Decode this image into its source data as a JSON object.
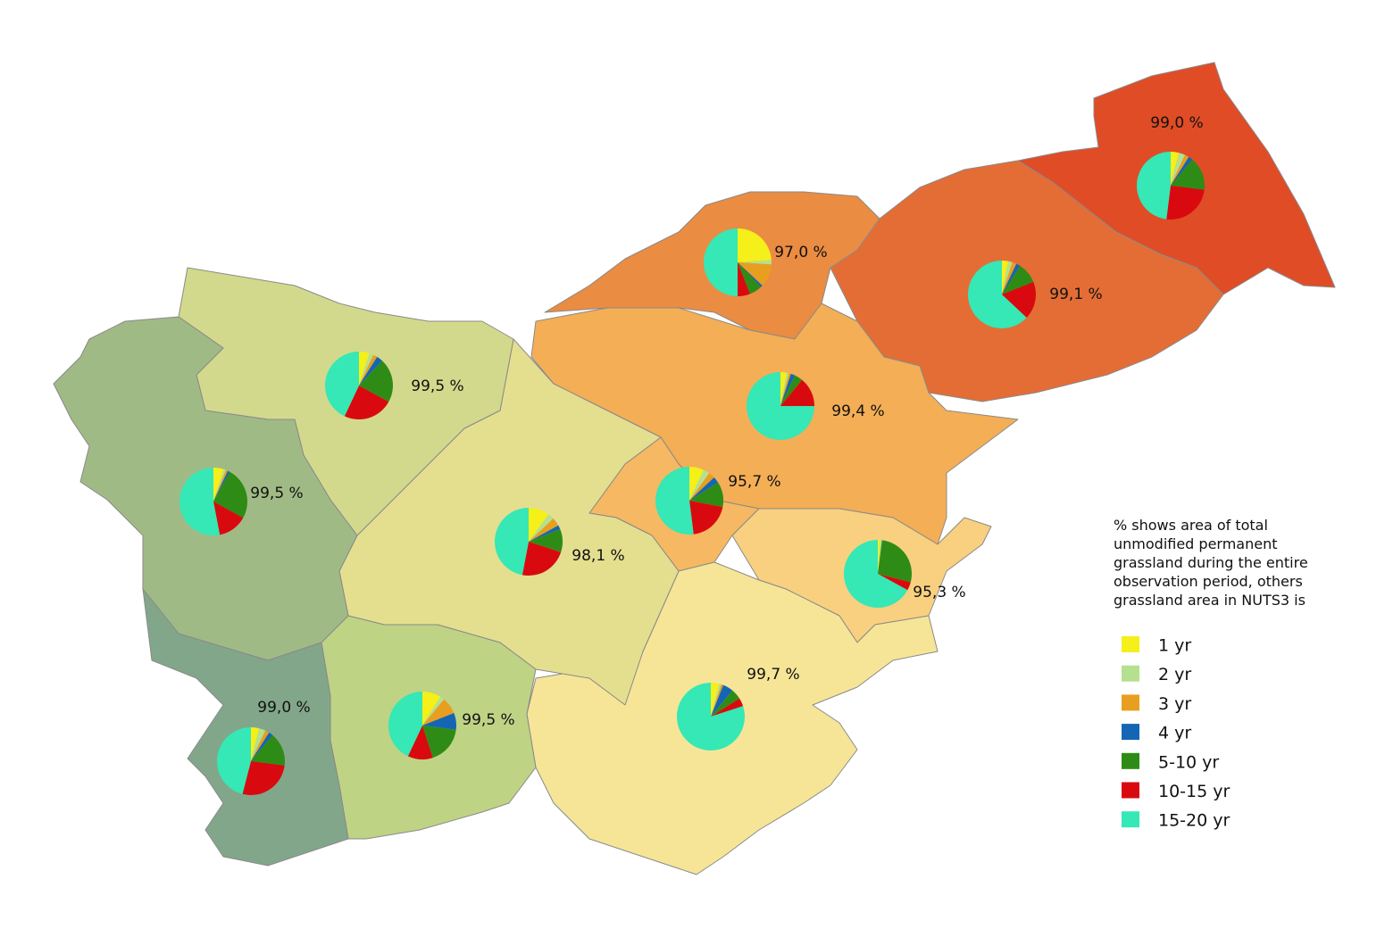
{
  "note": "% shows area of total unmodified permanent grassland during the entire observation period, others grassland area in NUTS3 is",
  "legend": [
    {
      "label": "1 yr",
      "color": "#f5ef1a"
    },
    {
      "label": "2 yr",
      "color": "#b5e08f"
    },
    {
      "label": "3 yr",
      "color": "#e89f1f"
    },
    {
      "label": "4 yr",
      "color": "#1565b5"
    },
    {
      "label": "5-10 yr",
      "color": "#2e8c16"
    },
    {
      "label": "10-15 yr",
      "color": "#d90a0f"
    },
    {
      "label": "15-20 yr",
      "color": "#35e8b5"
    }
  ],
  "regions": [
    {
      "label": "99,0 %",
      "pie": [
        4,
        3,
        2,
        2,
        16,
        25,
        48
      ]
    },
    {
      "label": "99,1 %",
      "pie": [
        3,
        2,
        2,
        2,
        10,
        18,
        63
      ]
    },
    {
      "label": "97,0 %",
      "pie": [
        24,
        2,
        11,
        1,
        6,
        6,
        50
      ]
    },
    {
      "label": "99,4 %",
      "pie": [
        3,
        1,
        1,
        2,
        4,
        14,
        75
      ]
    },
    {
      "label": "95,7 %",
      "pie": [
        7,
        3,
        3,
        3,
        12,
        20,
        52
      ]
    },
    {
      "label": "95,3 %",
      "pie": [
        1,
        1,
        0,
        0,
        27,
        4,
        67
      ]
    },
    {
      "label": "99,7 %",
      "pie": [
        4,
        1,
        1,
        5,
        5,
        4,
        80
      ]
    },
    {
      "label": "98,1 %",
      "pie": [
        10,
        3,
        4,
        2,
        11,
        23,
        47
      ]
    },
    {
      "label": "99,5 %",
      "pie": [
        5,
        2,
        2,
        3,
        21,
        24,
        43
      ]
    },
    {
      "label": "99,5 %",
      "pie": [
        5,
        1,
        1,
        1,
        25,
        14,
        53
      ]
    },
    {
      "label": "99,5 %",
      "pie": [
        9,
        2,
        8,
        8,
        18,
        12,
        43
      ]
    },
    {
      "label": "99,0 %",
      "pie": [
        4,
        3,
        2,
        2,
        16,
        27,
        46
      ]
    }
  ]
}
